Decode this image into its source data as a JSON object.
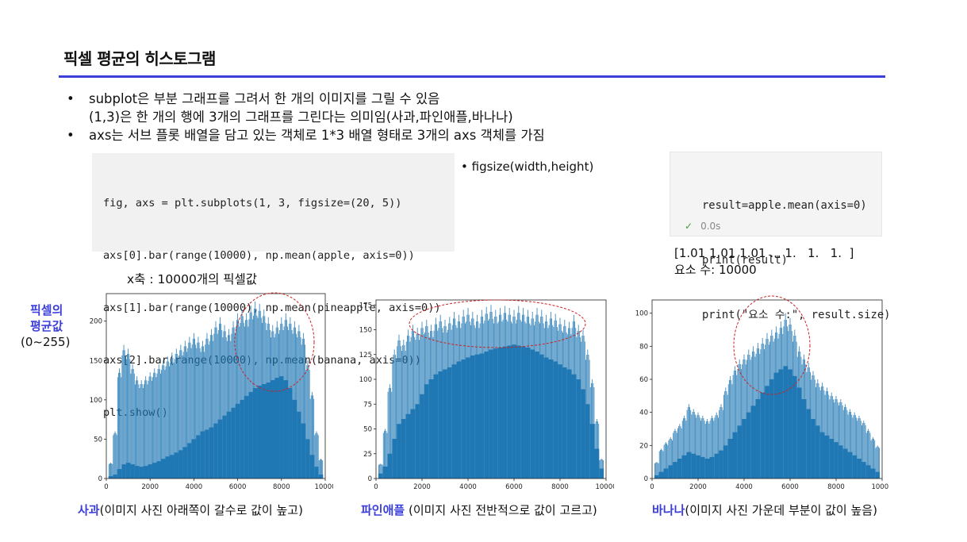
{
  "slide": {
    "title": "픽셀 평균의 히스토그램",
    "bullets": [
      {
        "dot": "•",
        "text": "subplot은 부분 그래프를 그려서 한 개의 이미지를 그릴 수 있음"
      },
      {
        "dot": "",
        "text": "(1,3)은 한 개의 행에 3개의 그래프를 그린다는 의미임(사과,파인애플,바나나)"
      },
      {
        "dot": "•",
        "text": "axs는 서브 플롯 배열을 담고 있는 객체로  1*3 배열 형태로 3개의 axs 객체를 가짐"
      }
    ],
    "figsize_note": "• figsize(width,height)",
    "xaxis_note": "x축 : 10000개의 픽셀값",
    "ylabel_note": {
      "line1": "픽셀의",
      "line2": "평균값",
      "line3": "(0~255)"
    }
  },
  "code1": {
    "lines": [
      "fig, axs = plt.subplots(1, 3, figsize=(20, 5))",
      "axs[0].bar(range(10000), np.mean(apple, axis=0))",
      "axs[1].bar(range(10000), np.mean(pineapple, axis=0))",
      "axs[2].bar(range(10000), np.mean(banana, axis=0))",
      "plt.show()"
    ]
  },
  "code2": {
    "lines": [
      "result=apple.mean(axis=0)",
      "print(result)",
      "print(\"요소 수:\", result.size)"
    ],
    "exec_check": "✓",
    "exec_time": "0.0s"
  },
  "output": {
    "line1": "[1.01 1.01 1.01 ... 1.   1.   1.  ]",
    "line2": "요소 수: 10000"
  },
  "captions": [
    {
      "highlight": "사과",
      "rest": "(이미지 사진 아래쪽이 갈수로 값이 높고)"
    },
    {
      "highlight": "파인애플",
      "rest": " (이미지 사진 전반적으로 값이 고르고)"
    },
    {
      "highlight": "바나나",
      "rest": "(이미지 사진 가운데 부분이 값이 높음)"
    }
  ],
  "colors": {
    "accent": "#3b3fd8",
    "bar": "#1f77b4",
    "ellipse": "#cc2222"
  },
  "chart_data": [
    {
      "type": "bar",
      "name": "apple",
      "xlim": [
        0,
        10000
      ],
      "ylim": [
        0,
        235
      ],
      "xticks": [
        0,
        2000,
        4000,
        6000,
        8000,
        10000
      ],
      "yticks": [
        0,
        50,
        100,
        150,
        200
      ],
      "x": [
        200,
        400,
        600,
        800,
        1000,
        1200,
        1400,
        1600,
        1800,
        2000,
        2200,
        2400,
        2600,
        2800,
        3000,
        3200,
        3400,
        3600,
        3800,
        4000,
        4200,
        4400,
        4600,
        4800,
        5000,
        5200,
        5400,
        5600,
        5800,
        6000,
        6200,
        6400,
        6600,
        6800,
        7000,
        7200,
        7400,
        7600,
        7800,
        8000,
        8200,
        8400,
        8600,
        8800,
        9000,
        9200,
        9400,
        9600,
        9800
      ],
      "values_peak": [
        20,
        60,
        140,
        170,
        165,
        145,
        130,
        125,
        130,
        135,
        140,
        145,
        150,
        155,
        160,
        165,
        170,
        175,
        180,
        185,
        180,
        175,
        185,
        190,
        200,
        205,
        195,
        190,
        200,
        210,
        215,
        210,
        220,
        225,
        222,
        215,
        205,
        195,
        200,
        205,
        210,
        205,
        200,
        195,
        185,
        150,
        110,
        60,
        25
      ],
      "values_base": [
        3,
        5,
        12,
        18,
        20,
        18,
        16,
        15,
        16,
        18,
        20,
        22,
        25,
        28,
        30,
        33,
        36,
        40,
        45,
        50,
        55,
        60,
        62,
        65,
        70,
        75,
        80,
        85,
        90,
        95,
        100,
        105,
        110,
        115,
        118,
        120,
        122,
        125,
        128,
        130,
        125,
        115,
        100,
        85,
        70,
        50,
        30,
        15,
        5
      ],
      "annotation": "ellipse"
    },
    {
      "type": "bar",
      "name": "pineapple",
      "xlim": [
        0,
        10000
      ],
      "ylim": [
        0,
        180
      ],
      "xticks": [
        0,
        2000,
        4000,
        6000,
        8000,
        10000
      ],
      "yticks": [
        0,
        25,
        50,
        75,
        100,
        125,
        150,
        175
      ],
      "x": [
        200,
        400,
        600,
        800,
        1000,
        1200,
        1400,
        1600,
        1800,
        2000,
        2200,
        2400,
        2600,
        2800,
        3000,
        3200,
        3400,
        3600,
        3800,
        4000,
        4200,
        4400,
        4600,
        4800,
        5000,
        5200,
        5400,
        5600,
        5800,
        6000,
        6200,
        6400,
        6600,
        6800,
        7000,
        7200,
        7400,
        7600,
        7800,
        8000,
        8200,
        8400,
        8600,
        8800,
        9000,
        9200,
        9400,
        9600,
        9800
      ],
      "values_peak": [
        15,
        50,
        95,
        130,
        145,
        140,
        150,
        155,
        152,
        158,
        160,
        155,
        162,
        165,
        160,
        163,
        168,
        165,
        170,
        172,
        168,
        165,
        170,
        173,
        175,
        170,
        172,
        174,
        172,
        170,
        174,
        172,
        170,
        168,
        172,
        170,
        165,
        168,
        166,
        162,
        160,
        158,
        165,
        155,
        150,
        130,
        100,
        60,
        20
      ],
      "values_base": [
        5,
        12,
        25,
        40,
        55,
        60,
        65,
        70,
        75,
        85,
        95,
        100,
        105,
        108,
        110,
        112,
        115,
        118,
        120,
        122,
        124,
        125,
        126,
        128,
        130,
        131,
        132,
        133,
        134,
        135,
        134,
        133,
        132,
        130,
        128,
        125,
        122,
        120,
        118,
        115,
        112,
        110,
        105,
        100,
        90,
        75,
        55,
        30,
        10
      ],
      "annotation": "ellipse"
    },
    {
      "type": "bar",
      "name": "banana",
      "xlim": [
        0,
        10000
      ],
      "ylim": [
        0,
        108
      ],
      "xticks": [
        0,
        2000,
        4000,
        6000,
        8000,
        10000
      ],
      "yticks": [
        0,
        20,
        40,
        60,
        80,
        100
      ],
      "x": [
        200,
        400,
        600,
        800,
        1000,
        1200,
        1400,
        1600,
        1800,
        2000,
        2200,
        2400,
        2600,
        2800,
        3000,
        3200,
        3400,
        3600,
        3800,
        4000,
        4200,
        4400,
        4600,
        4800,
        5000,
        5200,
        5400,
        5600,
        5800,
        6000,
        6200,
        6400,
        6600,
        6800,
        7000,
        7200,
        7400,
        7600,
        7800,
        8000,
        8200,
        8400,
        8600,
        8800,
        9000,
        9200,
        9400,
        9600,
        9800
      ],
      "values_peak": [
        10,
        18,
        22,
        25,
        30,
        33,
        38,
        45,
        42,
        40,
        38,
        36,
        38,
        40,
        45,
        55,
        62,
        68,
        72,
        75,
        78,
        80,
        82,
        85,
        88,
        90,
        92,
        95,
        100,
        97,
        90,
        80,
        75,
        70,
        65,
        60,
        58,
        55,
        52,
        50,
        48,
        45,
        42,
        40,
        38,
        35,
        30,
        25,
        20
      ],
      "values_base": [
        2,
        4,
        6,
        8,
        10,
        12,
        14,
        16,
        15,
        14,
        13,
        12,
        13,
        15,
        17,
        20,
        24,
        28,
        32,
        36,
        40,
        44,
        48,
        52,
        56,
        60,
        64,
        66,
        68,
        66,
        62,
        55,
        48,
        42,
        36,
        32,
        28,
        26,
        24,
        22,
        20,
        18,
        16,
        14,
        12,
        10,
        8,
        6,
        4
      ],
      "annotation": "ellipse"
    }
  ]
}
